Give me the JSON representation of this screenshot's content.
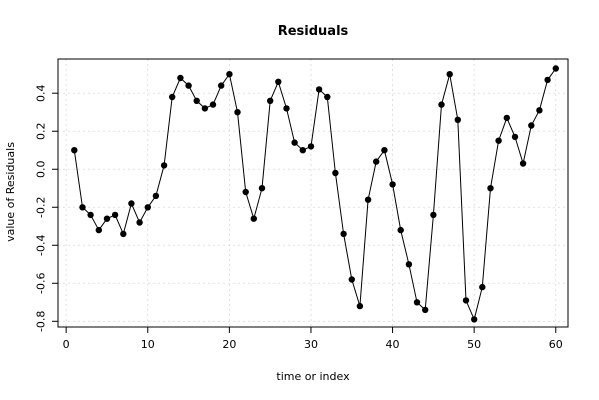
{
  "chart_data": {
    "type": "line",
    "title": "Residuals",
    "xlabel": "time or index",
    "ylabel": "value of Residuals",
    "xlim": [
      -1,
      61.5
    ],
    "ylim": [
      -0.83,
      0.58
    ],
    "xticks": [
      0,
      10,
      20,
      30,
      40,
      50,
      60
    ],
    "yticks": [
      -0.8,
      -0.6,
      -0.4,
      -0.2,
      0.0,
      0.2,
      0.4
    ],
    "ytick_labels": [
      "-0.8",
      "-0.6",
      "-0.4",
      "-0.2",
      "0.0",
      "0.2",
      "0.4"
    ],
    "grid": true,
    "series": [
      {
        "x": [
          1,
          2,
          3,
          4,
          5,
          6,
          7,
          8,
          9,
          10,
          11,
          12,
          13,
          14,
          15,
          16,
          17,
          18,
          19,
          20,
          21,
          22,
          23,
          24,
          25,
          26,
          27,
          28,
          29,
          30,
          31,
          32,
          33,
          34,
          35,
          36,
          37,
          38,
          39,
          40,
          41,
          42,
          43,
          44,
          45,
          46,
          47,
          48,
          49,
          50,
          51,
          52,
          53,
          54,
          55,
          56,
          57,
          58,
          59,
          60
        ],
        "values": [
          0.1,
          -0.2,
          -0.24,
          -0.32,
          -0.26,
          -0.24,
          -0.34,
          -0.18,
          -0.28,
          -0.2,
          -0.14,
          0.02,
          0.38,
          0.48,
          0.44,
          0.36,
          0.32,
          0.34,
          0.44,
          0.5,
          0.3,
          -0.12,
          -0.26,
          -0.1,
          0.36,
          0.46,
          0.32,
          0.14,
          0.1,
          0.12,
          0.42,
          0.38,
          -0.02,
          -0.34,
          -0.58,
          -0.72,
          -0.16,
          0.04,
          0.1,
          -0.08,
          -0.32,
          -0.5,
          -0.7,
          -0.74,
          -0.24,
          0.34,
          0.5,
          0.26,
          -0.69,
          -0.79,
          -0.62,
          -0.1,
          0.15,
          0.27,
          0.17,
          0.03,
          0.23,
          0.31,
          0.47,
          0.53
        ]
      }
    ]
  }
}
